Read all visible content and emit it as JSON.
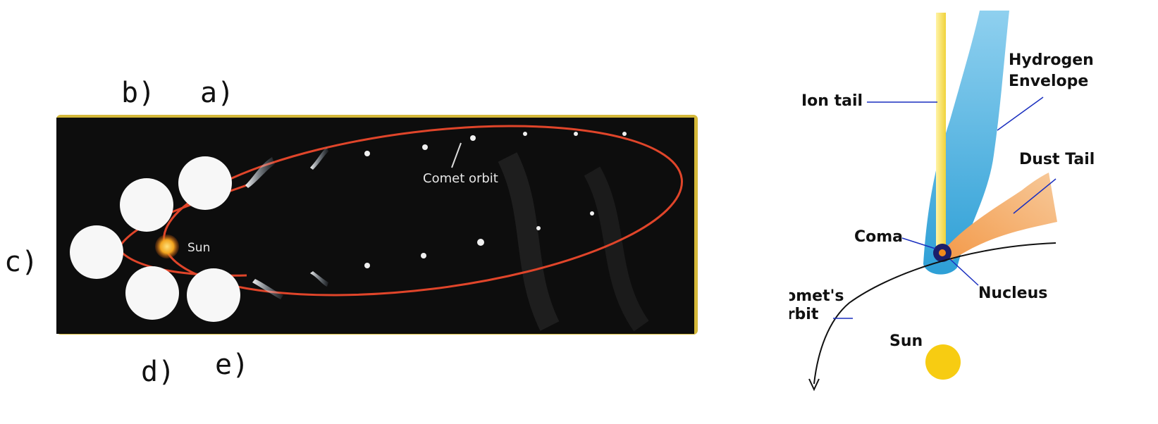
{
  "orbit_figure": {
    "comet_orbit_label": "Comet orbit",
    "sun_label": "Sun",
    "option_labels": {
      "a": "a)",
      "b": "b)",
      "c": "c)",
      "d": "d)",
      "e": "e)"
    },
    "colors": {
      "background": "#0d0d0d",
      "frame": "#d4b83a",
      "orbit": "#e0452a",
      "sun": "#f2a51f",
      "position_disc": "#f7f7f7"
    }
  },
  "comet_anatomy": {
    "labels": {
      "ion_tail": "Ion tail",
      "hydrogen_envelope_line1": "Hydrogen",
      "hydrogen_envelope_line2": "Envelope",
      "dust_tail": "Dust Tail",
      "coma": "Coma",
      "nucleus": "Nucleus",
      "comet_orbit_line1": "Comet's",
      "comet_orbit_line2": "Orbit",
      "sun": "Sun"
    },
    "colors": {
      "ion_tail": "#f5e16a",
      "hydrogen_envelope": "#35a7d9",
      "dust_tail": "#f3a65c",
      "leader_lines": "#1a2fbf",
      "sun": "#f7cc12",
      "nucleus_ring": "#1b1f6b",
      "nucleus_core": "#f08a1c"
    }
  }
}
